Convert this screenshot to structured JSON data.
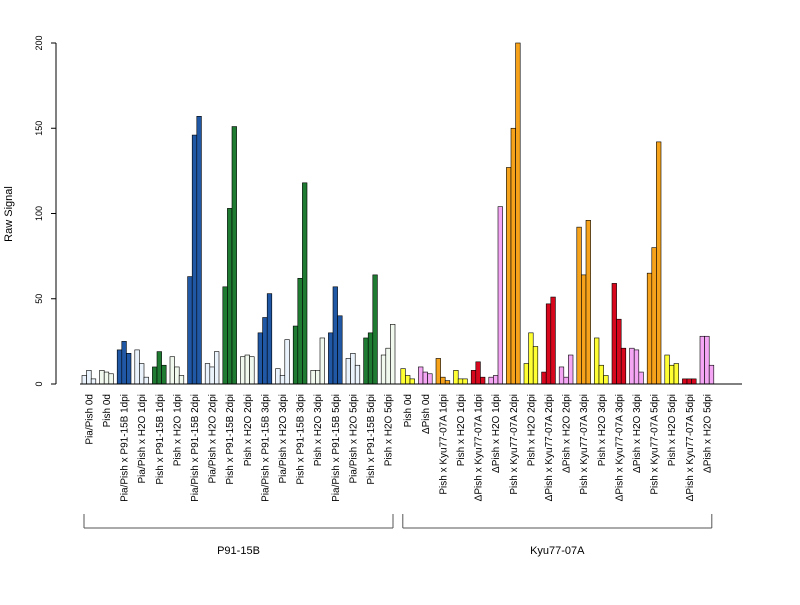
{
  "chart_data": {
    "type": "bar",
    "ylabel": "Raw Signal",
    "ylim": [
      0,
      200
    ],
    "yticks": [
      0,
      50,
      100,
      150,
      200
    ],
    "grid": false,
    "legend": "none",
    "groups": [
      {
        "label": "P91-15B",
        "samples": [
          {
            "label": "Pia/Pish 0d",
            "color": "#eaf2fb",
            "values": [
              5,
              8,
              3
            ]
          },
          {
            "label": "Pish 0d",
            "color": "#f1f8ee",
            "values": [
              8,
              7,
              6
            ]
          },
          {
            "label": "Pia/Pish x P91-15B 1dpi",
            "color": "#2158a6",
            "values": [
              20,
              25,
              18
            ]
          },
          {
            "label": "Pia/Pish x H2O 1dpi",
            "color": "#eaf2fb",
            "values": [
              20,
              12,
              4
            ]
          },
          {
            "label": "Pish x P91-15B 1dpi",
            "color": "#1f7a32",
            "values": [
              10,
              19,
              11
            ]
          },
          {
            "label": "Pish x H2O 1dpi",
            "color": "#f1f8ee",
            "values": [
              16,
              10,
              5
            ]
          },
          {
            "label": "Pia/Pish x P91-15B 2dpi",
            "color": "#2158a6",
            "values": [
              63,
              146,
              157
            ]
          },
          {
            "label": "Pia/Pish x H2O 2dpi",
            "color": "#eaf2fb",
            "values": [
              12,
              10,
              19
            ]
          },
          {
            "label": "Pish x P91-15B 2dpi",
            "color": "#1f7a32",
            "values": [
              57,
              103,
              151
            ]
          },
          {
            "label": "Pish x H2O 2dpi",
            "color": "#f1f8ee",
            "values": [
              16,
              17,
              16
            ]
          },
          {
            "label": "Pia/Pish x P91-15B 3dpi",
            "color": "#2158a6",
            "values": [
              30,
              39,
              53
            ]
          },
          {
            "label": "Pia/Pish x H2O 3dpi",
            "color": "#eaf2fb",
            "values": [
              9,
              5,
              26
            ]
          },
          {
            "label": "Pish x P91-15B 3dpi",
            "color": "#1f7a32",
            "values": [
              34,
              62,
              118
            ]
          },
          {
            "label": "Pish x H2O 3dpi",
            "color": "#f1f8ee",
            "values": [
              8,
              8,
              27
            ]
          },
          {
            "label": "Pia/Pish x P91-15B 5dpi",
            "color": "#2158a6",
            "values": [
              30,
              57,
              40
            ]
          },
          {
            "label": "Pia/Pish x H2O 5dpi",
            "color": "#eaf2fb",
            "values": [
              15,
              18,
              11
            ]
          },
          {
            "label": "Pish x P91-15B 5dpi",
            "color": "#1f7a32",
            "values": [
              27,
              30,
              64
            ]
          },
          {
            "label": "Pish x H2O 5dpi",
            "color": "#f1f8ee",
            "values": [
              17,
              21,
              35
            ]
          }
        ]
      },
      {
        "label": "Kyu77-07A",
        "samples": [
          {
            "label": "Pish 0d",
            "color": "#ffff33",
            "values": [
              9,
              5,
              3
            ]
          },
          {
            "label": "ΔPish 0d",
            "color": "#f4a6f4",
            "values": [
              10,
              7,
              6
            ]
          },
          {
            "label": "Pish x Kyu77-07A 1dpi",
            "color": "#f7a21b",
            "values": [
              15,
              4,
              2
            ]
          },
          {
            "label": "Pish x H2O 1dpi",
            "color": "#ffff33",
            "values": [
              8,
              3,
              3
            ]
          },
          {
            "label": "ΔPish x Kyu77-07A 1dpi",
            "color": "#d7081e",
            "values": [
              8,
              13,
              4
            ]
          },
          {
            "label": "ΔPish x H2O 1dpi",
            "color": "#f4a6f4",
            "values": [
              4,
              5,
              104
            ]
          },
          {
            "label": "Pish x Kyu77-07A 2dpi",
            "color": "#f7a21b",
            "values": [
              127,
              150,
              200
            ]
          },
          {
            "label": "Pish x H2O 2dpi",
            "color": "#ffff33",
            "values": [
              12,
              30,
              22
            ]
          },
          {
            "label": "ΔPish x Kyu77-07A 2dpi",
            "color": "#d7081e",
            "values": [
              7,
              47,
              51
            ]
          },
          {
            "label": "ΔPish x H2O 2dpi",
            "color": "#f4a6f4",
            "values": [
              10,
              4,
              17
            ]
          },
          {
            "label": "Pish x Kyu77-07A 3dpi",
            "color": "#f7a21b",
            "values": [
              92,
              64,
              96
            ]
          },
          {
            "label": "Pish x H2O 3dpi",
            "color": "#ffff33",
            "values": [
              27,
              11,
              5
            ]
          },
          {
            "label": "ΔPish x Kyu77-07A 3dpi",
            "color": "#d7081e",
            "values": [
              59,
              38,
              21
            ]
          },
          {
            "label": "ΔPish x H2O 3dpi",
            "color": "#f4a6f4",
            "values": [
              21,
              20,
              7
            ]
          },
          {
            "label": "Pish x Kyu77-07A 5dpi",
            "color": "#f7a21b",
            "values": [
              65,
              80,
              142
            ]
          },
          {
            "label": "Pish x H2O 5dpi",
            "color": "#ffff33",
            "values": [
              17,
              11,
              12
            ]
          },
          {
            "label": "ΔPish x Kyu77-07A 5dpi",
            "color": "#d7081e",
            "values": [
              3,
              3,
              3
            ]
          },
          {
            "label": "ΔPish x H2O 5dpi",
            "color": "#f4a6f4",
            "values": [
              28,
              28,
              11
            ]
          }
        ]
      }
    ]
  }
}
